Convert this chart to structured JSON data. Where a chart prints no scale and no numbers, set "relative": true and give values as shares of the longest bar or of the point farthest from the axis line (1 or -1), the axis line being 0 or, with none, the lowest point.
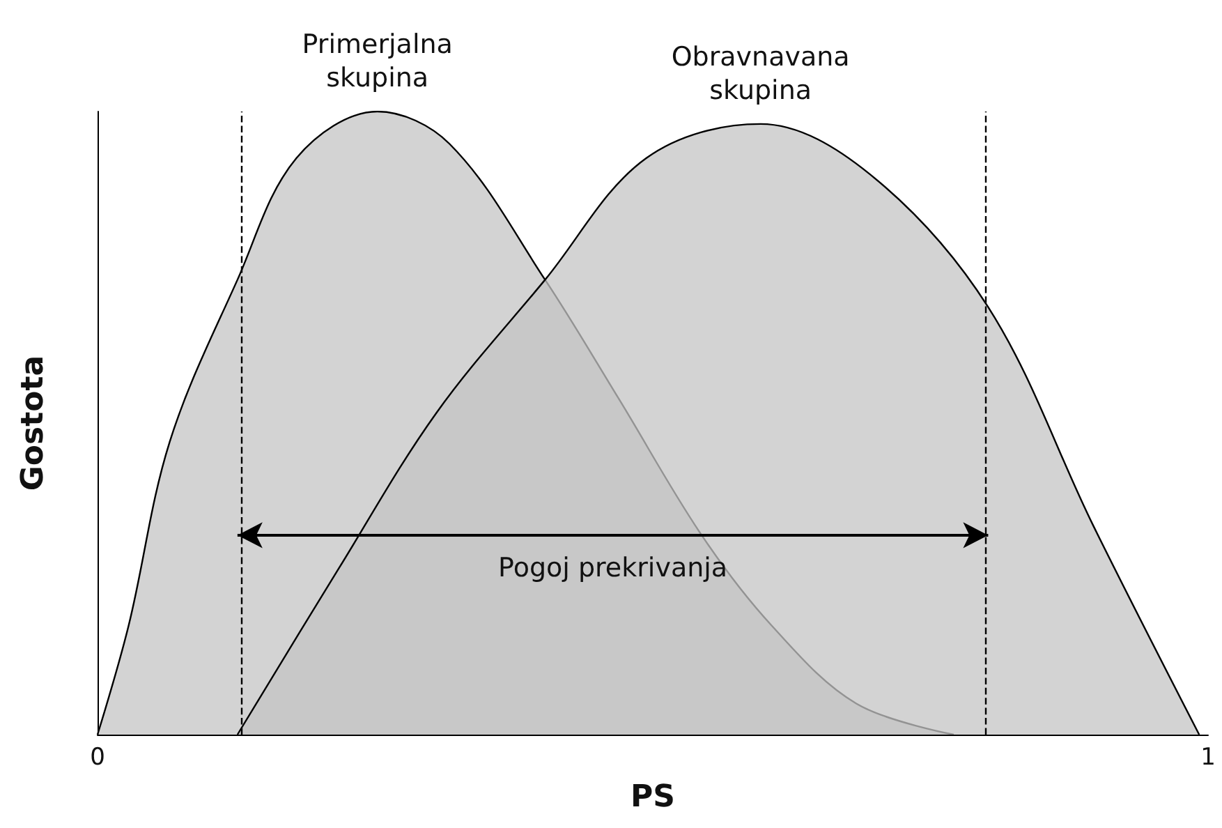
{
  "chart_data": {
    "type": "area",
    "xlabel": "PS",
    "ylabel": "Gostota",
    "relative": true,
    "xlim": [
      0,
      1
    ],
    "xticks": [
      0,
      1
    ],
    "legend": false,
    "grid": false,
    "marker": "none",
    "series": [
      {
        "name": "Primerjalna skupina",
        "color": "#c4c4c4",
        "x": [
          0,
          0.028,
          0.065,
          0.126,
          0.179,
          0.252,
          0.317,
          0.403,
          0.469,
          0.544,
          0.607,
          0.683,
          0.771
        ],
        "values": [
          0,
          0.175,
          0.47,
          0.73,
          0.925,
          1.0,
          0.948,
          0.73,
          0.54,
          0.32,
          0.175,
          0.05,
          0
        ]
      },
      {
        "name": "Obravnavana skupina",
        "color": "#c4c4c4",
        "x": [
          0.126,
          0.217,
          0.305,
          0.403,
          0.494,
          0.597,
          0.695,
          0.802,
          0.897,
          0.992
        ],
        "values": [
          0,
          0.266,
          0.516,
          0.73,
          0.925,
          0.98,
          0.9,
          0.686,
          0.334,
          0
        ]
      }
    ],
    "ref_lines": [
      {
        "axis": "x",
        "value": 0.126,
        "line_style": "dashed"
      },
      {
        "axis": "x",
        "value": 0.802,
        "line_style": "dashed"
      }
    ],
    "annotations": [
      "Pogoj prekrivanja"
    ]
  }
}
